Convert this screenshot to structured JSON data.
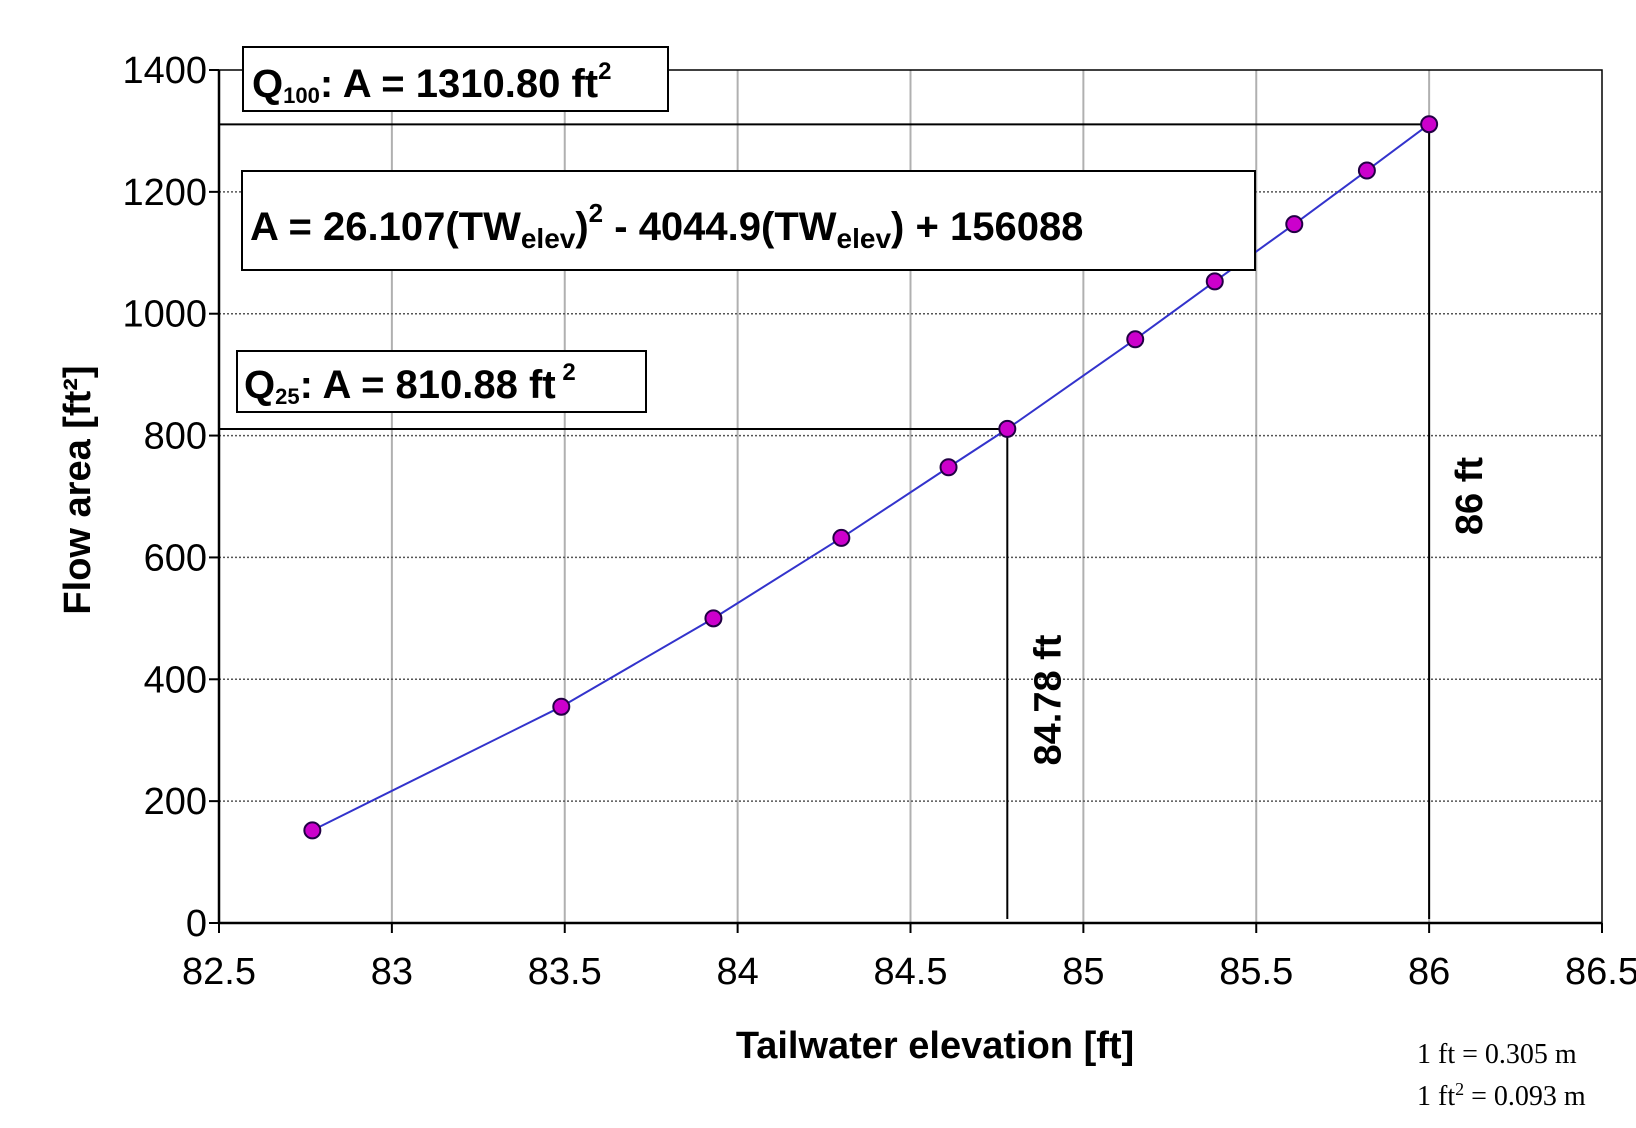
{
  "chart_data": {
    "type": "line",
    "xlabel": "Tailwater elevation [ft]",
    "ylabel": "Flow area [ft²]",
    "xlim": [
      82.5,
      86.5
    ],
    "ylim": [
      0,
      1400
    ],
    "x_ticks": [
      "82.5",
      "83",
      "83.5",
      "84",
      "84.5",
      "85",
      "85.5",
      "86",
      "86.5"
    ],
    "y_ticks": [
      "0",
      "200",
      "400",
      "600",
      "800",
      "1000",
      "1200",
      "1400"
    ],
    "grid": true,
    "series": [
      {
        "color": "#3333cc",
        "marker_color": "#cc00cc",
        "x": [
          82.77,
          83.49,
          83.93,
          84.3,
          84.61,
          84.78,
          85.15,
          85.38,
          85.61,
          85.82,
          86.0
        ],
        "y": [
          152,
          355,
          500,
          632,
          748,
          811,
          958,
          1053,
          1147,
          1235,
          1311
        ]
      }
    ],
    "reference_lines": [
      {
        "x": 84.78,
        "y": 810.88,
        "label": "84.78 ft"
      },
      {
        "x": 86.0,
        "y": 1310.8,
        "label": "86 ft"
      }
    ],
    "annotations": {
      "q100": {
        "sym": "Q",
        "sub": "100",
        "text": ": A = 1310.80 ft",
        "sup": "2"
      },
      "equation": {
        "p1": "A = 26.107(TW",
        "s1": "elev",
        "p2": ")",
        "sup": "2",
        "p3": " - 4044.9(TW",
        "s2": "elev",
        "p4": ") + 156088"
      },
      "q25": {
        "sym": "Q",
        "sub": "25",
        "text": ": A = 810.88 ft",
        "sup": " 2"
      }
    },
    "units_note": {
      "line1": "1 ft = 0.305 m",
      "line2a": "1 ft",
      "line2sup": "2",
      "line2b": " = 0.093 m"
    }
  }
}
